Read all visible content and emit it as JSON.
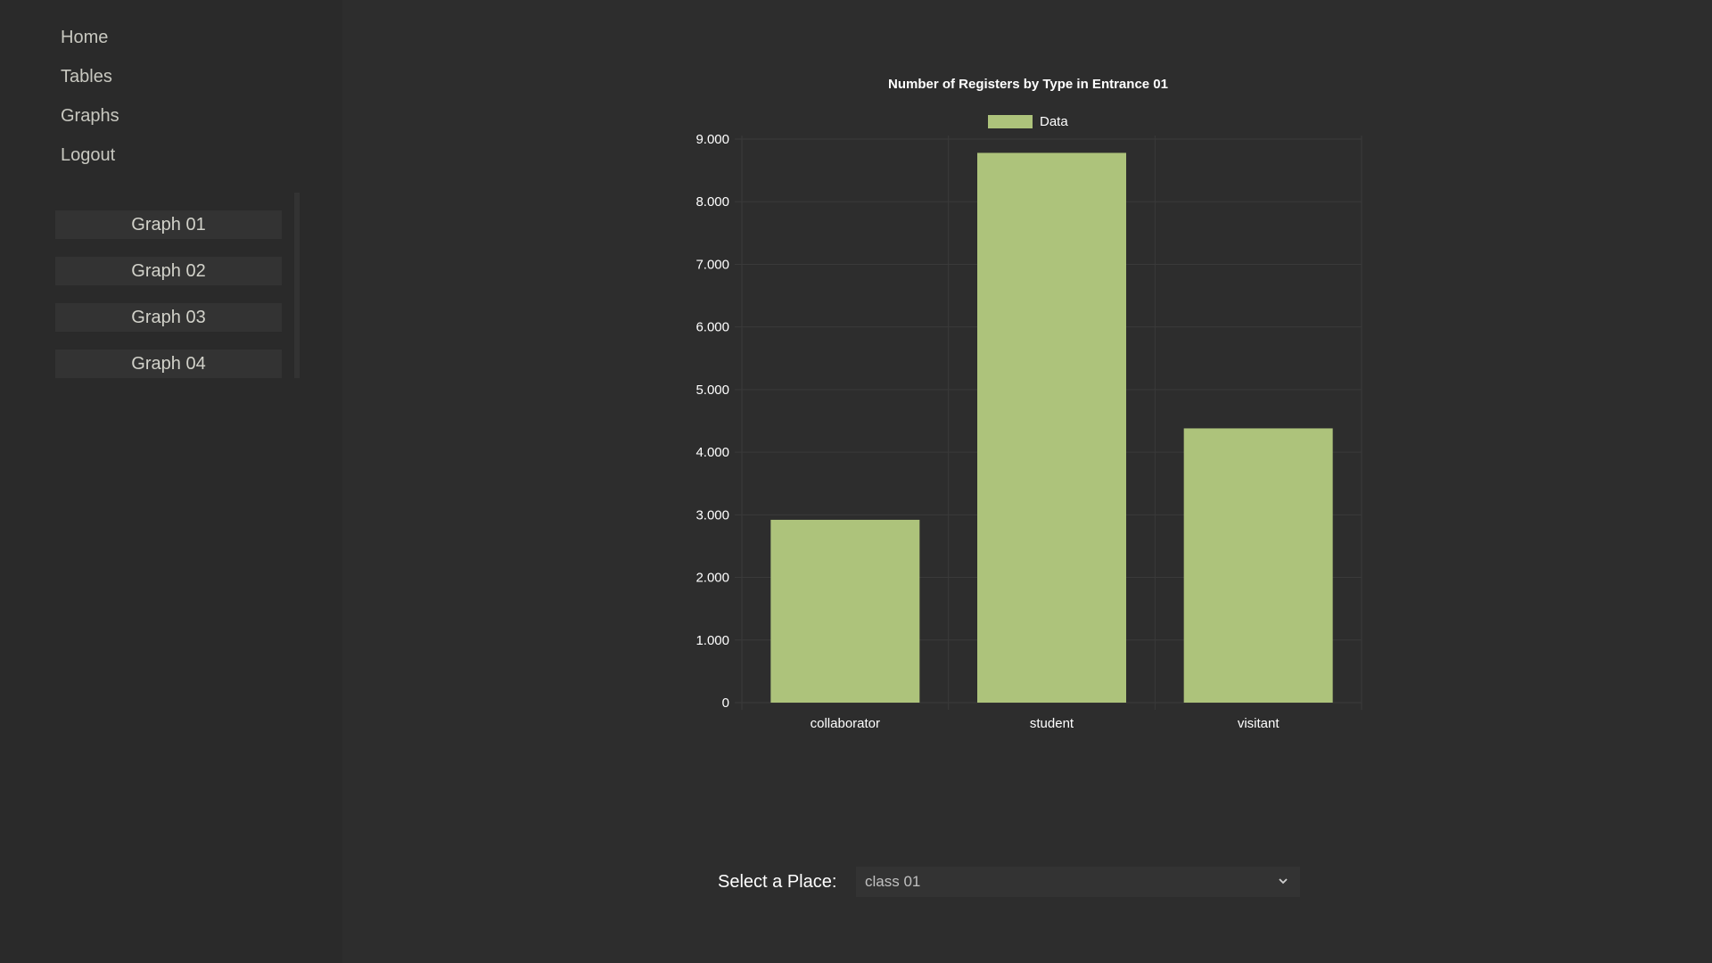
{
  "nav": {
    "items": [
      {
        "label": "Home"
      },
      {
        "label": "Tables"
      },
      {
        "label": "Graphs"
      },
      {
        "label": "Logout"
      }
    ]
  },
  "graphs": {
    "items": [
      {
        "label": "Graph 01"
      },
      {
        "label": "Graph 02"
      },
      {
        "label": "Graph 03"
      },
      {
        "label": "Graph 04"
      }
    ]
  },
  "place_selector": {
    "label": "Select a Place:",
    "value": "class 01"
  },
  "colors": {
    "bar": "#adc37b",
    "grid": "#3a3a3a",
    "background": "#2d2d2d",
    "sidebar": "#2a2a2a"
  },
  "chart_data": {
    "type": "bar",
    "title": "Number of Registers by Type in Entrance 01",
    "categories": [
      "collaborator",
      "student",
      "visitant"
    ],
    "series": [
      {
        "name": "Data",
        "values": [
          2920,
          8780,
          4380
        ]
      }
    ],
    "ylim": [
      0,
      9000
    ],
    "yticks": [
      0,
      1000,
      2000,
      3000,
      4000,
      5000,
      6000,
      7000,
      8000,
      9000
    ],
    "ytick_labels": [
      "0",
      "1.000",
      "2.000",
      "3.000",
      "4.000",
      "5.000",
      "6.000",
      "7.000",
      "8.000",
      "9.000"
    ],
    "grid": true,
    "legend": "top-center",
    "xlabel": "",
    "ylabel": ""
  }
}
